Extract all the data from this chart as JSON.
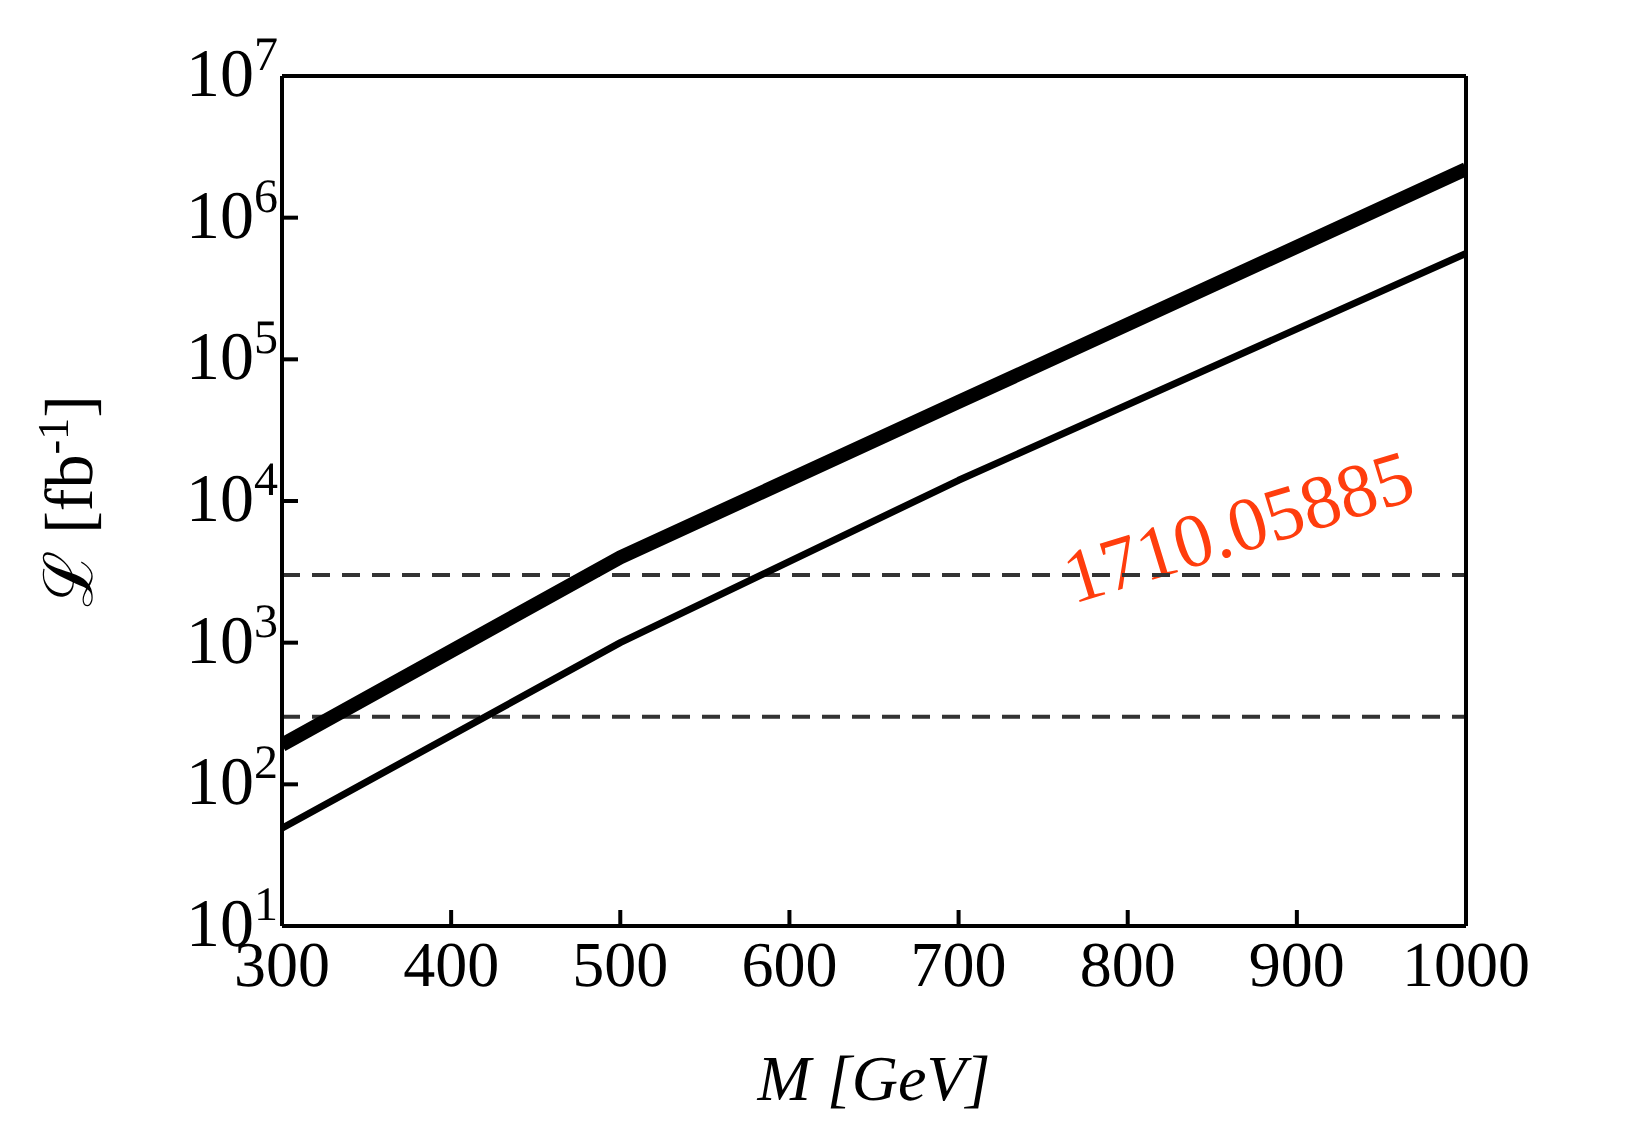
{
  "chart_data": {
    "type": "line",
    "xlabel": "M [GeV]",
    "ylabel": "ℒ [fb$^{-1}$]",
    "x": [
      300,
      500,
      700,
      1000
    ],
    "series": [
      {
        "color": "#000000",
        "values": [
          190,
          4000,
          50000,
          2200000
        ]
      },
      {
        "color": "#000000",
        "values": [
          49,
          1000,
          14000,
          560000
        ]
      }
    ],
    "log": "y",
    "xlim": [
      300,
      1000
    ],
    "xticks": [
      300,
      400,
      500,
      600,
      700,
      800,
      900,
      1000
    ],
    "ylim": [
      10,
      10000000
    ],
    "yticks": [
      {
        "value": 10,
        "label": "10$^{1}$"
      },
      {
        "value": 100,
        "label": "10$^{2}$"
      },
      {
        "value": 1000,
        "label": "10$^{3}$"
      },
      {
        "value": 10000,
        "label": "10$^{4}$"
      },
      {
        "value": 100000,
        "label": "10$^{5}$"
      },
      {
        "value": 1000000,
        "label": "10$^{6}$"
      },
      {
        "value": 10000000,
        "label": "10$^{7}$"
      }
    ],
    "ref_lines": [
      {
        "axis": "y",
        "value": 3000,
        "color": "#333333",
        "line_style": "dashed"
      },
      {
        "axis": "y",
        "value": 300,
        "color": "#333333",
        "line_style": "dashed"
      }
    ],
    "annotations": [
      "1710.05885"
    ],
    "marker": "none",
    "line_style": "solid"
  }
}
